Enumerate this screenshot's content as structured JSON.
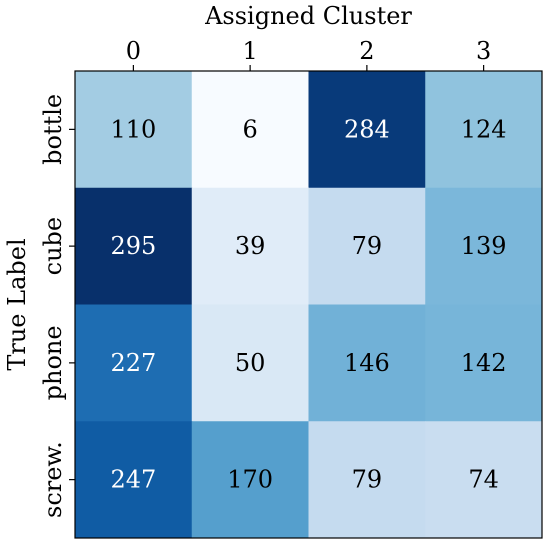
{
  "chart_data": {
    "type": "heatmap",
    "xlabel": "Assigned Cluster",
    "ylabel": "True Label",
    "x_categories": [
      "0",
      "1",
      "2",
      "3"
    ],
    "y_categories": [
      "bottle",
      "cube",
      "phone",
      "screw."
    ],
    "values": [
      [
        110,
        6,
        284,
        124
      ],
      [
        295,
        39,
        79,
        139
      ],
      [
        227,
        50,
        146,
        142
      ],
      [
        247,
        170,
        79,
        74
      ]
    ],
    "x_axis_position": "top",
    "colormap": "Blues",
    "value_range": [
      6,
      295
    ],
    "grid": false
  }
}
